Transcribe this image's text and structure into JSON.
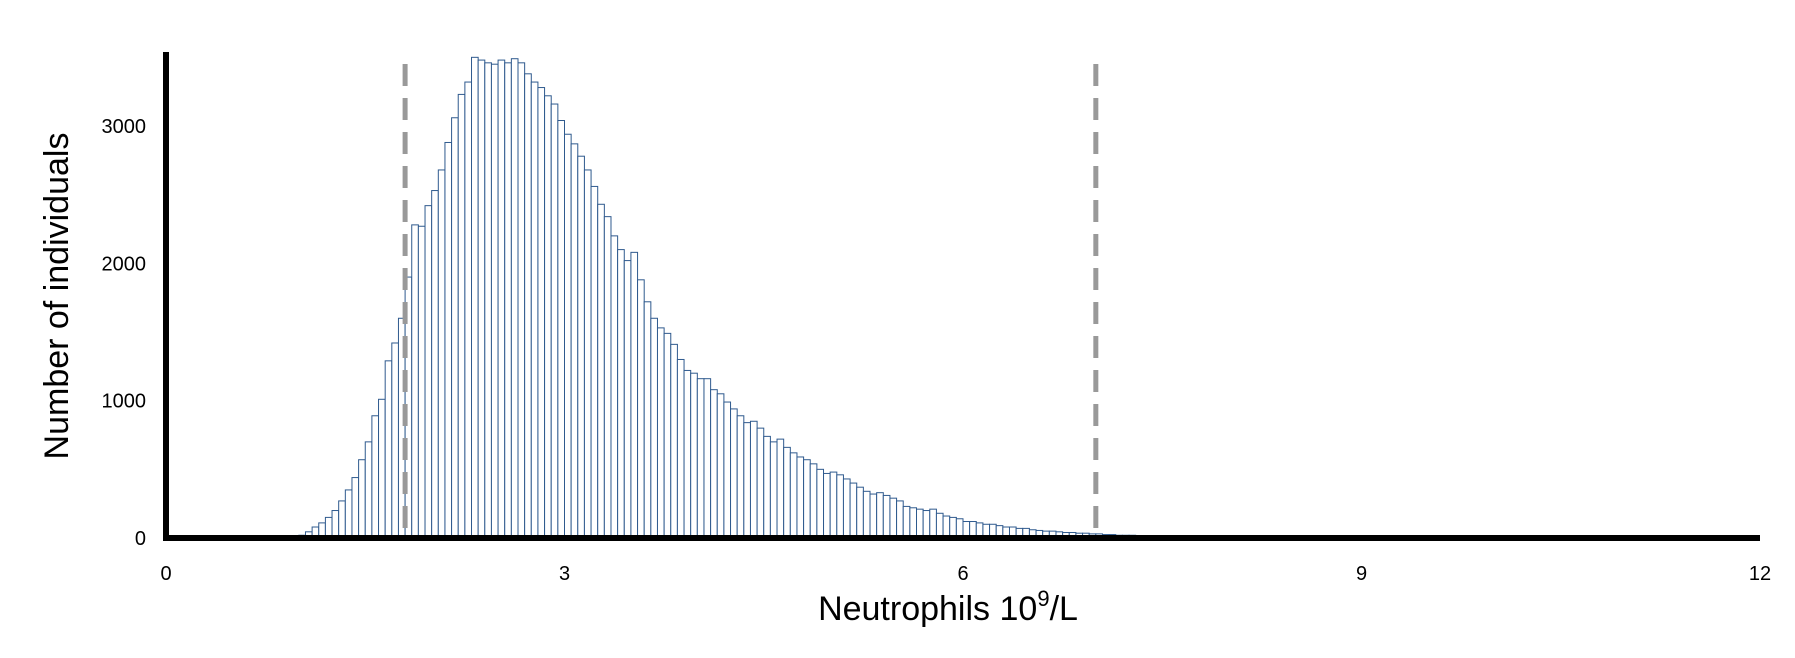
{
  "chart_data": {
    "type": "histogram",
    "title": "",
    "xlabel": "Neutrophils 10",
    "xlabel_superscript": "9",
    "xlabel_suffix": "/L",
    "ylabel": "Number of individuals",
    "xlim": [
      0,
      12
    ],
    "ylim": [
      0,
      3500
    ],
    "x_ticks": [
      0,
      3,
      6,
      9,
      12
    ],
    "x_tick_labels": [
      "0",
      "3",
      "6",
      "9",
      "12"
    ],
    "y_ticks": [
      0,
      1000,
      2000,
      3000
    ],
    "y_tick_labels": [
      "0",
      "1000",
      "2000",
      "3000"
    ],
    "grid": false,
    "bin_start": 0.95,
    "bin_width": 0.05,
    "counts": [
      5,
      20,
      45,
      80,
      110,
      150,
      200,
      270,
      350,
      440,
      570,
      700,
      890,
      1010,
      1290,
      1420,
      1600,
      1900,
      2280,
      2270,
      2420,
      2530,
      2680,
      2880,
      3060,
      3230,
      3320,
      3500,
      3480,
      3460,
      3450,
      3480,
      3460,
      3490,
      3460,
      3380,
      3320,
      3280,
      3220,
      3160,
      3040,
      2940,
      2870,
      2780,
      2680,
      2560,
      2430,
      2340,
      2200,
      2100,
      2020,
      2080,
      1880,
      1720,
      1600,
      1530,
      1490,
      1410,
      1300,
      1220,
      1200,
      1160,
      1160,
      1080,
      1050,
      990,
      940,
      890,
      840,
      850,
      800,
      740,
      700,
      720,
      660,
      620,
      590,
      570,
      540,
      500,
      470,
      480,
      460,
      430,
      400,
      370,
      340,
      320,
      330,
      310,
      290,
      270,
      230,
      220,
      210,
      200,
      210,
      180,
      160,
      150,
      140,
      120,
      120,
      110,
      100,
      100,
      90,
      80,
      80,
      70,
      70,
      60,
      55,
      50,
      50,
      45,
      40,
      40,
      35,
      35,
      30,
      30,
      25,
      25,
      20,
      20,
      20,
      15,
      15,
      15,
      10,
      10,
      10,
      10,
      10,
      5,
      5,
      5,
      5,
      5,
      5,
      5,
      5,
      5,
      0,
      0,
      0,
      0,
      0,
      0,
      0
    ],
    "bar_color": "#2f5a8e",
    "reference_lines": [
      {
        "x": 1.8,
        "color": "#999999",
        "style": "dashed"
      },
      {
        "x": 7.0,
        "color": "#999999",
        "style": "dashed"
      }
    ]
  }
}
